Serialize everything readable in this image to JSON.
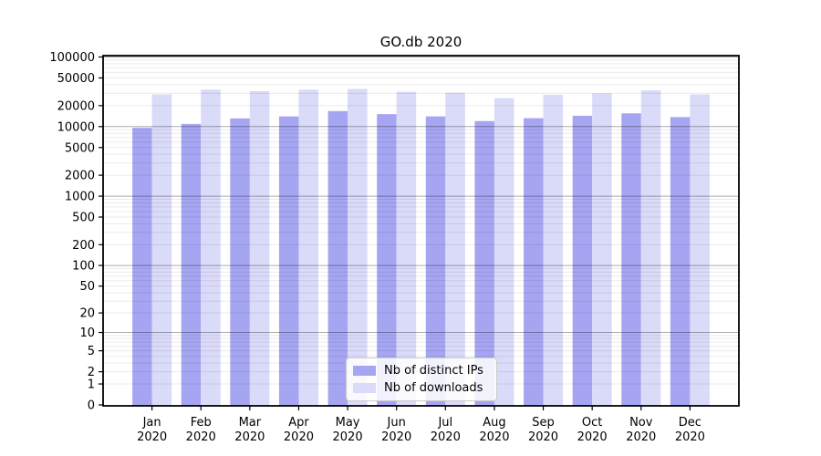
{
  "figure": {
    "title": "GO.db 2020"
  },
  "legend": {
    "items": [
      {
        "label": "Nb of distinct IPs",
        "color": "#a5a5f2"
      },
      {
        "label": "Nb of downloads",
        "color": "#dadaf9"
      }
    ]
  },
  "chart_data": {
    "type": "bar",
    "title": "GO.db 2020",
    "categories": [
      "Jan 2020",
      "Feb 2020",
      "Mar 2020",
      "Apr 2020",
      "May 2020",
      "Jun 2020",
      "Jul 2020",
      "Aug 2020",
      "Sep 2020",
      "Oct 2020",
      "Nov 2020",
      "Dec 2020"
    ],
    "series": [
      {
        "name": "Nb of distinct IPs",
        "color": "#a5a5f2",
        "values": [
          9600,
          10900,
          13100,
          14000,
          16700,
          15100,
          14000,
          12000,
          13200,
          14300,
          15500,
          13700
        ]
      },
      {
        "name": "Nb of downloads",
        "color": "#dadaf9",
        "values": [
          29000,
          34000,
          32300,
          33900,
          34800,
          31600,
          30700,
          25600,
          28600,
          30100,
          33200,
          29000
        ]
      }
    ],
    "xlabel": "",
    "ylabel": "",
    "yscale": "log1p",
    "ylim": [
      0,
      100000
    ],
    "y_tick_labels": [
      "0",
      "1",
      "2",
      "5",
      "10",
      "20",
      "50",
      "100",
      "200",
      "500",
      "1000",
      "2000",
      "5000",
      "10000",
      "20000",
      "50000",
      "100000"
    ],
    "y_ticks": [
      0,
      1,
      2,
      5,
      10,
      20,
      50,
      100,
      200,
      500,
      1000,
      2000,
      5000,
      10000,
      20000,
      50000,
      100000
    ],
    "grid": "horizontal: faint log minor lines, darker decade lines (10..100000), drawn over bars",
    "legend_position": "lower center inside plot"
  },
  "colors": {
    "bar_distinct_ips": "#a5a5f2",
    "bar_downloads": "#dadaf9",
    "grid_minor": "rgba(0,0,0,0.08)",
    "grid_major": "rgba(0,0,0,0.33)",
    "spine": "#000000",
    "text": "#000000"
  }
}
